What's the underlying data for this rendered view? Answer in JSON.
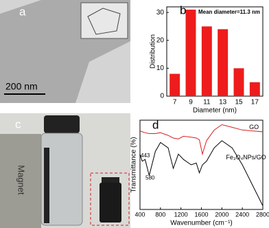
{
  "images": {
    "a": {
      "label": "a",
      "scale_bar": "200 nm"
    },
    "c": {
      "label": "c",
      "text": "Magnet"
    }
  },
  "chart_data": [
    {
      "type": "bar",
      "label": "b",
      "annotation": "Mean diameter=11.3 nm",
      "categories": [
        "7",
        "9",
        "11",
        "13",
        "15",
        "17"
      ],
      "values": [
        8,
        31,
        25,
        24,
        10,
        5
      ],
      "color": "#ee1c1c",
      "ylim": [
        0,
        32
      ],
      "yticks": [
        0,
        10,
        20,
        30
      ],
      "xlabel": "Diameter (nm)",
      "ylabel": "Distribution"
    },
    {
      "type": "line",
      "label": "d",
      "x": [
        400,
        443,
        500,
        580,
        700,
        800,
        950,
        1050,
        1150,
        1250,
        1400,
        1500,
        1560,
        1620,
        1700,
        1850,
        2000,
        2200,
        2400,
        2600,
        2800
      ],
      "series": [
        {
          "name": "GO",
          "color": "#d62020",
          "values": [
            88,
            87,
            86,
            85,
            85,
            86,
            83,
            80,
            79,
            82,
            81,
            80,
            78,
            62,
            77,
            89,
            95,
            92,
            89,
            88,
            87
          ]
        },
        {
          "name": "Fe₃O₄NPs/GO",
          "color": "#000000",
          "values": [
            62,
            54,
            56,
            38,
            65,
            75,
            69,
            46,
            62,
            56,
            50,
            52,
            41,
            50,
            54,
            69,
            77,
            69,
            50,
            27,
            4
          ]
        }
      ],
      "annotations": [
        "443",
        "580"
      ],
      "xlim": [
        400,
        2800
      ],
      "xticks": [
        400,
        800,
        1200,
        1600,
        2000,
        2400,
        2800
      ],
      "ylim": [
        0,
        100
      ],
      "xlabel": "Wavenumber (cm⁻¹)",
      "ylabel": "Transmittance (%)"
    }
  ]
}
